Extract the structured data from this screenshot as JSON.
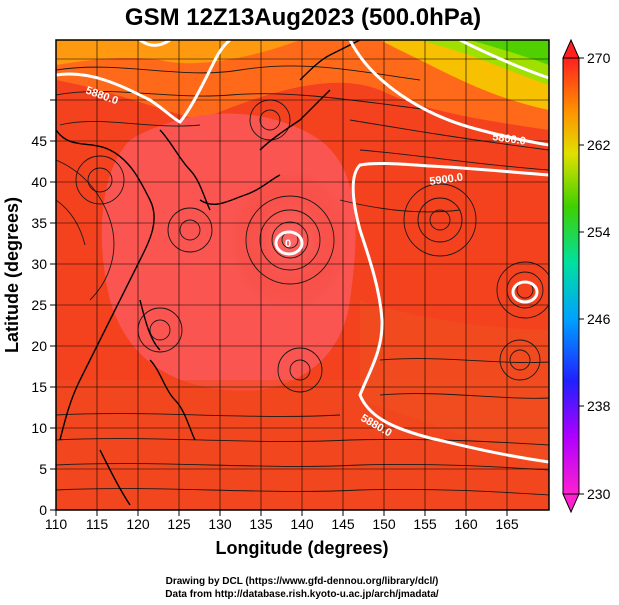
{
  "title": "GSM 12Z13Aug2023 (500.0hPa)",
  "x_axis": {
    "label": "Longitude (degrees)",
    "ticks": [
      110,
      115,
      120,
      125,
      130,
      135,
      140,
      145,
      150,
      155,
      160,
      165
    ],
    "range": [
      110,
      170
    ]
  },
  "y_axis": {
    "label": "Latitude  (degrees)",
    "ticks": [
      0,
      5,
      10,
      15,
      20,
      25,
      30,
      35,
      40,
      45
    ],
    "range": [
      0,
      50
    ]
  },
  "colorbar": {
    "labels": [
      "270",
      "262",
      "254",
      "246",
      "238",
      "230"
    ],
    "min": 230,
    "max": 270
  },
  "contours": [
    {
      "label": "5880.0"
    },
    {
      "label": "5800.0"
    },
    {
      "label": "5900.0"
    },
    {
      "label": "5880.0"
    },
    {
      "label": "0"
    }
  ],
  "credits": {
    "line1": "Drawing by DCL (https://www.gfd-dennou.org/library/dcl/)",
    "line2": "Data from http://database.rish.kyoto-u.ac.jp/arch/jmadata/"
  },
  "colors": {
    "warm": "#f03a2a",
    "hot": "#ff4444",
    "orange": "#ff8c00",
    "yellow": "#f0d000",
    "green": "#40d000",
    "contour": "#ffffff"
  }
}
